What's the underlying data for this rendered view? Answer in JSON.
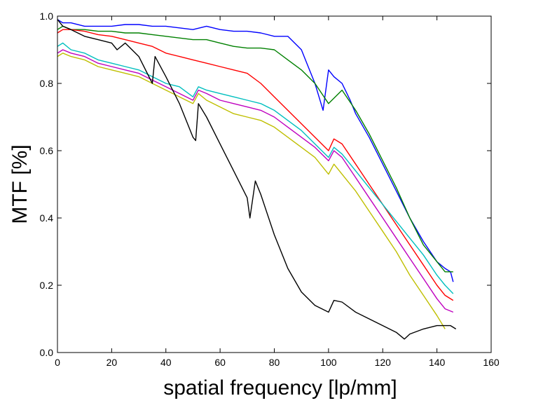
{
  "chart_data": {
    "type": "line",
    "xlabel": "spatial frequency [lp/mm]",
    "ylabel": "MTF [%]",
    "xlim": [
      0,
      160
    ],
    "ylim": [
      0.0,
      1.0
    ],
    "xticks": [
      "0",
      "20",
      "40",
      "60",
      "80",
      "100",
      "120",
      "140",
      "160"
    ],
    "yticks": [
      "0.0",
      "0.2",
      "0.4",
      "0.6",
      "0.8",
      "1.0"
    ],
    "grid": false,
    "legend": "none",
    "series": [
      {
        "color": "#0000ff",
        "x": [
          0,
          2,
          5,
          10,
          15,
          20,
          25,
          30,
          35,
          40,
          45,
          50,
          55,
          60,
          65,
          70,
          75,
          80,
          85,
          90,
          92,
          95,
          98,
          100,
          102,
          105,
          108,
          110,
          115,
          120,
          125,
          130,
          135,
          140,
          143,
          145,
          146
        ],
        "y": [
          0.99,
          0.98,
          0.98,
          0.97,
          0.97,
          0.97,
          0.975,
          0.975,
          0.97,
          0.97,
          0.965,
          0.96,
          0.97,
          0.96,
          0.955,
          0.955,
          0.95,
          0.94,
          0.94,
          0.9,
          0.86,
          0.8,
          0.72,
          0.84,
          0.82,
          0.8,
          0.75,
          0.71,
          0.64,
          0.56,
          0.48,
          0.4,
          0.33,
          0.27,
          0.25,
          0.24,
          0.21
        ]
      },
      {
        "color": "#008000",
        "x": [
          0,
          2,
          5,
          10,
          15,
          20,
          25,
          30,
          35,
          40,
          45,
          50,
          55,
          60,
          65,
          70,
          75,
          80,
          85,
          90,
          95,
          100,
          105,
          110,
          115,
          120,
          125,
          130,
          135,
          140,
          143,
          146
        ],
        "y": [
          0.96,
          0.97,
          0.96,
          0.96,
          0.955,
          0.955,
          0.95,
          0.95,
          0.945,
          0.94,
          0.935,
          0.93,
          0.93,
          0.92,
          0.91,
          0.905,
          0.905,
          0.9,
          0.87,
          0.84,
          0.8,
          0.74,
          0.78,
          0.72,
          0.65,
          0.57,
          0.49,
          0.4,
          0.32,
          0.27,
          0.24,
          0.24
        ]
      },
      {
        "color": "#ff0000",
        "x": [
          0,
          2,
          5,
          10,
          15,
          20,
          25,
          30,
          35,
          40,
          45,
          50,
          55,
          60,
          65,
          70,
          75,
          80,
          85,
          90,
          95,
          100,
          102,
          105,
          110,
          115,
          120,
          125,
          130,
          135,
          140,
          143,
          146
        ],
        "y": [
          0.95,
          0.96,
          0.96,
          0.955,
          0.945,
          0.94,
          0.93,
          0.92,
          0.91,
          0.89,
          0.88,
          0.87,
          0.86,
          0.85,
          0.84,
          0.83,
          0.8,
          0.76,
          0.72,
          0.68,
          0.64,
          0.6,
          0.635,
          0.62,
          0.56,
          0.5,
          0.44,
          0.38,
          0.32,
          0.26,
          0.2,
          0.17,
          0.155
        ]
      },
      {
        "color": "#00bfbf",
        "x": [
          0,
          2,
          5,
          10,
          15,
          20,
          25,
          30,
          35,
          40,
          45,
          50,
          52,
          55,
          60,
          65,
          70,
          75,
          80,
          85,
          90,
          95,
          100,
          102,
          105,
          110,
          115,
          120,
          125,
          130,
          135,
          140,
          143,
          146
        ],
        "y": [
          0.91,
          0.92,
          0.9,
          0.89,
          0.87,
          0.86,
          0.85,
          0.84,
          0.82,
          0.8,
          0.79,
          0.76,
          0.79,
          0.78,
          0.77,
          0.76,
          0.75,
          0.74,
          0.72,
          0.69,
          0.66,
          0.62,
          0.58,
          0.61,
          0.59,
          0.54,
          0.49,
          0.44,
          0.39,
          0.34,
          0.29,
          0.23,
          0.2,
          0.175
        ]
      },
      {
        "color": "#bf00bf",
        "x": [
          0,
          2,
          5,
          10,
          15,
          20,
          25,
          30,
          35,
          40,
          45,
          50,
          52,
          55,
          60,
          65,
          70,
          75,
          80,
          85,
          90,
          95,
          100,
          102,
          105,
          110,
          115,
          120,
          125,
          130,
          135,
          140,
          143,
          146
        ],
        "y": [
          0.89,
          0.9,
          0.89,
          0.88,
          0.86,
          0.85,
          0.84,
          0.83,
          0.81,
          0.79,
          0.77,
          0.75,
          0.78,
          0.77,
          0.75,
          0.74,
          0.73,
          0.72,
          0.7,
          0.67,
          0.64,
          0.61,
          0.57,
          0.6,
          0.58,
          0.52,
          0.46,
          0.4,
          0.34,
          0.28,
          0.22,
          0.16,
          0.13,
          0.12
        ]
      },
      {
        "color": "#bfbf00",
        "x": [
          0,
          2,
          5,
          10,
          15,
          20,
          25,
          30,
          35,
          40,
          45,
          50,
          52,
          55,
          60,
          65,
          70,
          75,
          80,
          85,
          90,
          95,
          100,
          102,
          105,
          110,
          115,
          120,
          125,
          130,
          135,
          140,
          143
        ],
        "y": [
          0.88,
          0.89,
          0.88,
          0.87,
          0.85,
          0.84,
          0.83,
          0.82,
          0.8,
          0.78,
          0.76,
          0.74,
          0.77,
          0.75,
          0.73,
          0.71,
          0.7,
          0.69,
          0.67,
          0.64,
          0.61,
          0.58,
          0.53,
          0.56,
          0.53,
          0.48,
          0.42,
          0.36,
          0.3,
          0.23,
          0.17,
          0.11,
          0.07
        ]
      },
      {
        "color": "#000000",
        "x": [
          0,
          2,
          5,
          10,
          15,
          20,
          22,
          25,
          30,
          35,
          36,
          40,
          45,
          50,
          51,
          52,
          55,
          60,
          65,
          70,
          71,
          73,
          75,
          80,
          85,
          90,
          95,
          100,
          102,
          105,
          110,
          115,
          120,
          125,
          128,
          130,
          135,
          140,
          145,
          147
        ],
        "y": [
          0.99,
          0.97,
          0.96,
          0.94,
          0.93,
          0.92,
          0.9,
          0.92,
          0.88,
          0.8,
          0.88,
          0.82,
          0.74,
          0.64,
          0.63,
          0.74,
          0.7,
          0.62,
          0.54,
          0.46,
          0.4,
          0.51,
          0.47,
          0.35,
          0.25,
          0.18,
          0.14,
          0.12,
          0.155,
          0.15,
          0.12,
          0.1,
          0.08,
          0.06,
          0.04,
          0.055,
          0.07,
          0.08,
          0.08,
          0.07
        ]
      }
    ]
  }
}
